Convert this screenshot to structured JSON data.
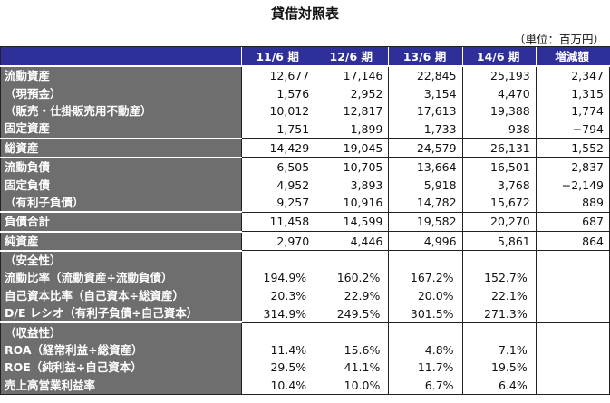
{
  "title": "貸借対照表",
  "unit": "（単位：百万円）",
  "headers": [
    "",
    "11/6 期",
    "12/6 期",
    "13/6 期",
    "14/6 期",
    "増減額"
  ],
  "rows": [
    {
      "label": "流動資産",
      "values": [
        "12,677",
        "17,146",
        "22,845",
        "25,193",
        "2,347"
      ]
    },
    {
      "label": "（現預金）",
      "values": [
        "1,576",
        "2,952",
        "3,154",
        "4,470",
        "1,315"
      ]
    },
    {
      "label": "（販売・仕掛販売用不動産）",
      "values": [
        "10,012",
        "12,817",
        "17,613",
        "19,388",
        "1,774"
      ]
    },
    {
      "label": "固定資産",
      "values": [
        "1,751",
        "1,899",
        "1,733",
        "938",
        "−794"
      ]
    },
    {
      "label": "総資産",
      "values": [
        "14,429",
        "19,045",
        "24,579",
        "26,131",
        "1,552"
      ]
    },
    {
      "label": "流動負債",
      "values": [
        "6,505",
        "10,705",
        "13,664",
        "16,501",
        "2,837"
      ]
    },
    {
      "label": "固定負債",
      "values": [
        "4,952",
        "3,893",
        "5,918",
        "3,768",
        "−2,149"
      ]
    },
    {
      "label": "（有利子負債）",
      "values": [
        "9,257",
        "10,916",
        "14,782",
        "15,672",
        "889"
      ]
    },
    {
      "label": "負債合計",
      "values": [
        "11,458",
        "14,599",
        "19,582",
        "20,270",
        "687"
      ]
    },
    {
      "label": "純資産",
      "values": [
        "2,970",
        "4,446",
        "4,996",
        "5,861",
        "864"
      ]
    },
    {
      "label": "（安全性）",
      "values": [
        "",
        "",
        "",
        "",
        ""
      ]
    },
    {
      "label": "流動比率（流動資産÷流動負債）",
      "values": [
        "194.9%",
        "160.2%",
        "167.2%",
        "152.7%",
        ""
      ]
    },
    {
      "label": "自己資本比率（自己資本÷総資産）",
      "values": [
        "20.3%",
        "22.9%",
        "20.0%",
        "22.1%",
        ""
      ]
    },
    {
      "label": "D/E レシオ（有利子負債÷自己資本）",
      "values": [
        "314.9%",
        "249.5%",
        "301.5%",
        "271.3%",
        ""
      ]
    },
    {
      "label": "（収益性）",
      "values": [
        "",
        "",
        "",
        "",
        ""
      ]
    },
    {
      "label": "ROA（経常利益÷総資産）",
      "values": [
        "11.4%",
        "15.6%",
        "4.8%",
        "7.1%",
        ""
      ]
    },
    {
      "label": "ROE（純利益÷自己資本）",
      "values": [
        "29.5%",
        "41.1%",
        "11.7%",
        "19.5%",
        ""
      ]
    },
    {
      "label": "売上高営業利益率",
      "values": [
        "10.4%",
        "10.0%",
        "6.7%",
        "6.4%",
        ""
      ]
    }
  ]
}
